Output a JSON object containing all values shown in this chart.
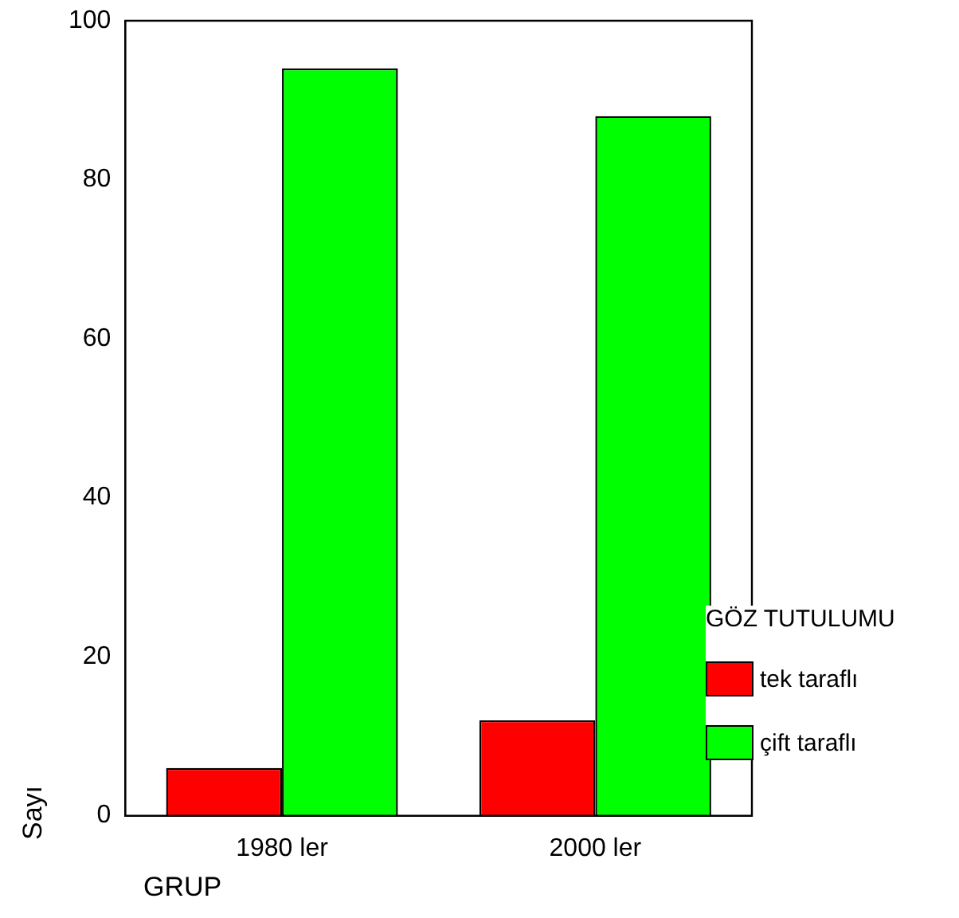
{
  "chart_data": {
    "type": "bar",
    "xlabel": "GRUP",
    "ylabel": "Sayı",
    "legend_title": "GÖZ TUTULUMU",
    "categories": [
      "1980 ler",
      "2000 ler"
    ],
    "series": [
      {
        "name": "tek taraflı",
        "color": "#ff0000",
        "values": [
          6,
          12
        ]
      },
      {
        "name": "çift taraflı",
        "color": "#00ff00",
        "values": [
          94,
          88
        ]
      }
    ],
    "ylim": [
      0,
      100
    ],
    "yticks": [
      0,
      20,
      40,
      60,
      80,
      100
    ],
    "grid": false,
    "legend": "bottom right"
  }
}
